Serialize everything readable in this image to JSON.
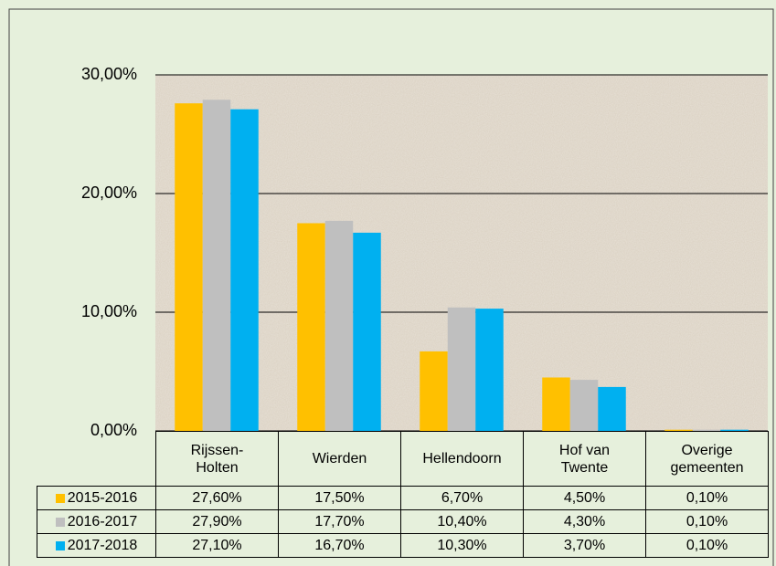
{
  "chart_data": {
    "type": "bar",
    "categories": [
      "Rijssen-Holten",
      "Wierden",
      "Hellendoorn",
      "Hof van Twente",
      "Overige gemeenten"
    ],
    "series": [
      {
        "name": "2015-2016",
        "color": "#ffc000",
        "values": [
          27.6,
          17.5,
          6.7,
          4.5,
          0.1
        ],
        "value_labels": [
          "27,60%",
          "17,50%",
          "6,70%",
          "4,50%",
          "0,10%"
        ]
      },
      {
        "name": "2016-2017",
        "color": "#bfbfbf",
        "values": [
          27.9,
          17.7,
          10.4,
          4.3,
          0.1
        ],
        "value_labels": [
          "27,90%",
          "17,70%",
          "10,40%",
          "4,30%",
          "0,10%"
        ]
      },
      {
        "name": "2017-2018",
        "color": "#00b0f0",
        "values": [
          27.1,
          16.7,
          10.3,
          3.7,
          0.1
        ],
        "value_labels": [
          "27,10%",
          "16,70%",
          "10,30%",
          "3,70%",
          "0,10%"
        ]
      }
    ],
    "ylim": [
      0,
      30
    ],
    "yticks": [
      {
        "value": 0,
        "label": "0,00%"
      },
      {
        "value": 10,
        "label": "10,00%"
      },
      {
        "value": 20,
        "label": "20,00%"
      },
      {
        "value": 30,
        "label": "30,00%"
      }
    ],
    "grid": true
  }
}
